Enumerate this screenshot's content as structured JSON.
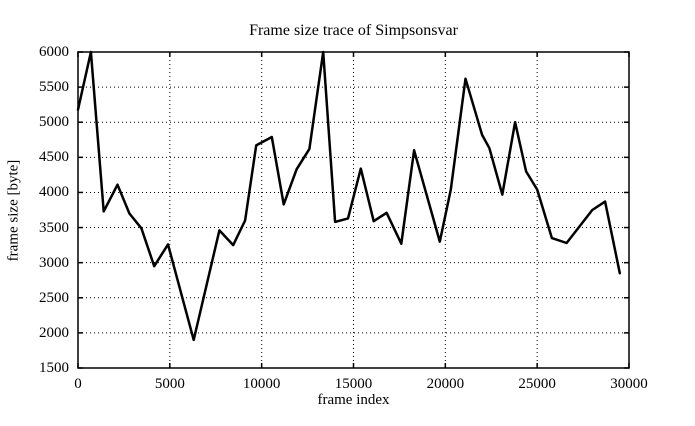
{
  "page": {
    "background": "#ffffff",
    "foreground": "#000000"
  },
  "chart": {
    "line_color": "#000000",
    "grid_color": "#000000",
    "border_color": "#000000"
  },
  "chart_data": {
    "type": "line",
    "title": "Frame size trace of Simpsonsvar",
    "xlabel": "frame index",
    "ylabel": "frame size [byte]",
    "xlim": [
      0,
      30000
    ],
    "ylim": [
      1500,
      6000
    ],
    "xticks": [
      0,
      5000,
      10000,
      15000,
      20000,
      25000,
      30000
    ],
    "yticks": [
      1500,
      2000,
      2500,
      3000,
      3500,
      4000,
      4500,
      5000,
      5500,
      6000
    ],
    "grid": true,
    "grid_style": "dotted",
    "legend": false,
    "series": [
      {
        "name": "frame size",
        "x": [
          0,
          700,
          1400,
          2150,
          2800,
          3450,
          4150,
          4900,
          6300,
          7700,
          8450,
          9100,
          9700,
          10550,
          11200,
          11900,
          12600,
          13350,
          14000,
          14700,
          15400,
          16100,
          16800,
          17600,
          18300,
          19700,
          20300,
          21100,
          22000,
          22400,
          23100,
          23800,
          24400,
          25000,
          25800,
          26600,
          28000,
          28700,
          29500
        ],
        "y": [
          5180,
          6000,
          3730,
          4110,
          3700,
          3490,
          2950,
          3260,
          1900,
          3460,
          3250,
          3600,
          4670,
          4790,
          3830,
          4330,
          4620,
          6000,
          3580,
          3630,
          4340,
          3590,
          3710,
          3270,
          4600,
          3300,
          4040,
          5620,
          4820,
          4630,
          3970,
          5000,
          4300,
          4040,
          3350,
          3280,
          3750,
          3870,
          2850
        ]
      }
    ]
  }
}
